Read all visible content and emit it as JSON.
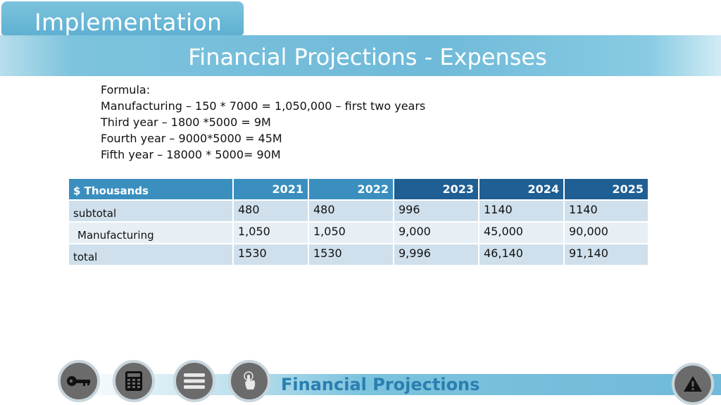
{
  "section_tab": {
    "label": "Implementation"
  },
  "page": {
    "title": "Financial Projections - Expenses"
  },
  "formula": {
    "lines": [
      "Formula:",
      "Manufacturing – 150 * 7000 = 1,050,000 – first two years",
      "Third year – 1800 *5000 =  9M",
      "Fourth year – 9000*5000 = 45M",
      "Fifth year – 18000 * 5000= 90M"
    ]
  },
  "table": {
    "header": [
      "$ Thousands",
      "2021",
      "2022",
      "2023",
      "2024",
      "2025"
    ],
    "rows": [
      [
        "subtotal",
        "480",
        "480",
        "996",
        "1140",
        "1140"
      ],
      [
        "Manufacturing",
        "1,050",
        "1,050",
        "9,000",
        "45,000",
        "90,000"
      ],
      [
        "total",
        "1530",
        "1530",
        "9,996",
        "46,140",
        "91,140"
      ]
    ]
  },
  "footer": {
    "label": "Financial Projections"
  },
  "nav": {
    "buttons": [
      "key-icon",
      "calculator-icon",
      "menu-icon",
      "touch-icon"
    ],
    "warning": "warning-icon"
  },
  "colors": {
    "accent": "#7cc3dd",
    "header_blue": "#3a8fbf",
    "header_dark": "#1f5f94",
    "footer_text": "#2a7fb0"
  }
}
